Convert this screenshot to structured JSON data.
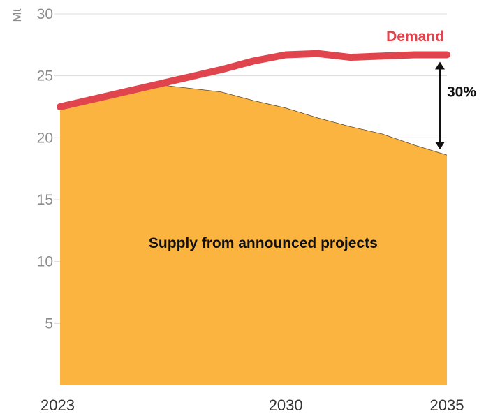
{
  "chart_data": {
    "type": "area",
    "ylabel": "Mt",
    "ylim": [
      0,
      30
    ],
    "yticks": [
      5,
      10,
      15,
      20,
      25,
      30
    ],
    "xlim": [
      2023,
      2035
    ],
    "xticks": [
      2023,
      2030,
      2035
    ],
    "grid": true,
    "series": [
      {
        "name": "Demand",
        "kind": "line",
        "color": "#e0454e",
        "x": [
          2023,
          2024,
          2025,
          2026,
          2027,
          2028,
          2029,
          2030,
          2031,
          2032,
          2033,
          2034,
          2035
        ],
        "values": [
          22.5,
          23.1,
          23.7,
          24.3,
          24.9,
          25.5,
          26.2,
          26.7,
          26.8,
          26.5,
          26.6,
          26.7,
          26.7
        ]
      },
      {
        "name": "Supply from announced projects",
        "kind": "area",
        "color": "#fbb440",
        "x": [
          2023,
          2024,
          2025,
          2026,
          2027,
          2028,
          2029,
          2030,
          2031,
          2032,
          2033,
          2034,
          2035
        ],
        "values": [
          22.5,
          23.1,
          23.7,
          24.3,
          24.0,
          23.7,
          23.0,
          22.4,
          21.6,
          20.9,
          20.3,
          19.4,
          18.6
        ]
      }
    ],
    "annotations": [
      {
        "text": "30%",
        "x": 2035,
        "from": 18.6,
        "to": 26.7
      }
    ]
  }
}
